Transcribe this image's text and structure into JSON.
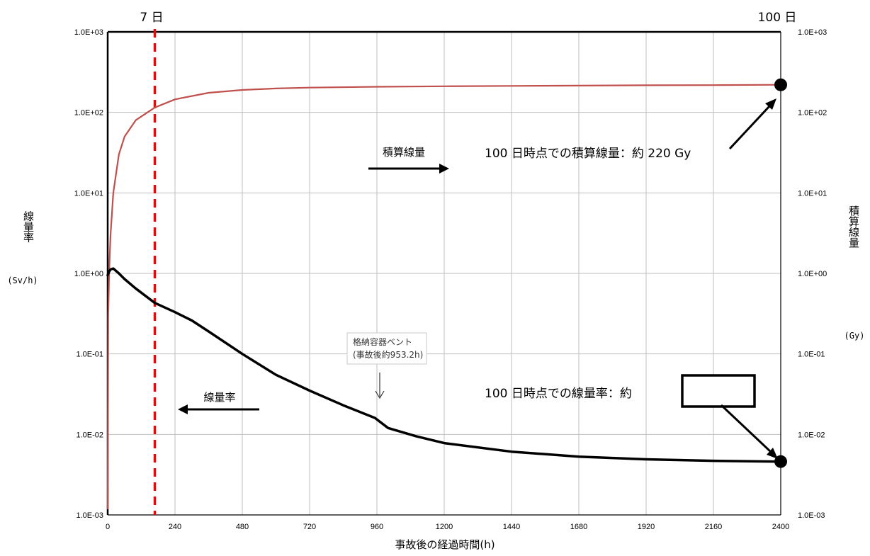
{
  "colors": {
    "cumulative": "#c0504d",
    "rate": "#000000",
    "marker_line": "#ff0000",
    "grid": "#bfbfbf"
  },
  "labels": {
    "day7": "7 日",
    "day100": "100 日",
    "left_axis_title": "線量率",
    "left_axis_unit": "(Sv/h)",
    "right_axis_title": "積算線量",
    "right_axis_unit": "(Gy)",
    "xlabel": "事故後の経過時間(h)",
    "cumulative_series": "積算線量",
    "rate_series": "線量率",
    "callout_line1": "格納容器ベント",
    "callout_line2": "(事故後約953.2h)",
    "annot_cumulative": "100 日時点での積算線量：約 220 Gy",
    "annot_rate": "100 日時点での線量率：約"
  },
  "chart_data": {
    "type": "line",
    "x_ticks": [
      0,
      240,
      480,
      720,
      960,
      1200,
      1440,
      1680,
      1920,
      2160,
      2400
    ],
    "xlim": [
      0,
      2400
    ],
    "ylim": [
      0.001,
      1000
    ],
    "y_scale": "log",
    "y_ticks": [
      "1.0E-03",
      "1.0E-02",
      "1.0E-01",
      "1.0E+00",
      "1.0E+01",
      "1.0E+02",
      "1.0E+03"
    ],
    "y_tick_values": [
      0.001,
      0.01,
      0.1,
      1,
      10,
      100,
      1000
    ],
    "grid": true,
    "marker_x": 168,
    "series": [
      {
        "name": "積算線量",
        "x": [
          0,
          2,
          5,
          10,
          20,
          40,
          60,
          100,
          168,
          240,
          360,
          480,
          600,
          720,
          960,
          1200,
          1440,
          1680,
          1920,
          2160,
          2400
        ],
        "y": [
          0.0012,
          0.3,
          1.0,
          3.0,
          10,
          30,
          50,
          80,
          115,
          145,
          175,
          190,
          198,
          203,
          208,
          211,
          213,
          215,
          217,
          218,
          220
        ]
      },
      {
        "name": "線量率",
        "x": [
          0,
          5,
          10,
          20,
          40,
          60,
          100,
          168,
          240,
          300,
          360,
          480,
          600,
          720,
          840,
          953.2,
          1000,
          1100,
          1200,
          1440,
          1680,
          1920,
          2160,
          2400
        ],
        "y": [
          0.95,
          1.05,
          1.12,
          1.15,
          1.0,
          0.85,
          0.65,
          0.43,
          0.33,
          0.26,
          0.19,
          0.1,
          0.055,
          0.035,
          0.023,
          0.016,
          0.012,
          0.0095,
          0.0078,
          0.0061,
          0.0053,
          0.0049,
          0.0047,
          0.0046
        ]
      }
    ]
  }
}
